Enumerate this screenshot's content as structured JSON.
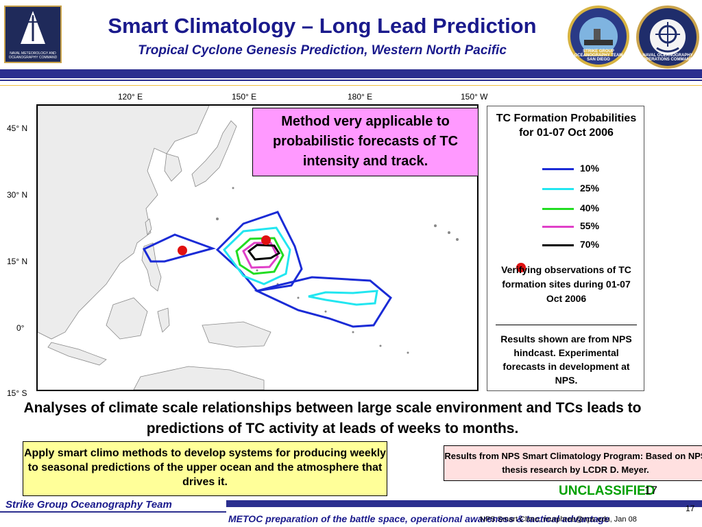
{
  "header": {
    "title": "Smart Climatology – Long Lead Prediction",
    "subtitle": "Tropical Cyclone Genesis Prediction, Western North Pacific",
    "logo_left_text": "NAVAL METEOROLOGY AND OCEANOGRAPHY COMMAND",
    "logo_right1_text": "STRIKE GROUP OCEANOGRAPHY TEAM SAN DIEGO",
    "logo_right2_text": "NAVAL OCEANOGRAPHY OPERATIONS COMMAND"
  },
  "map": {
    "lon_labels": [
      "120° E",
      "150° E",
      "180° E",
      "150° W"
    ],
    "lat_labels": [
      "45° N",
      "30° N",
      "15° N",
      "0°",
      "15° S"
    ],
    "callout": "Method very applicable to probabilistic forecasts of TC intensity and track."
  },
  "legend": {
    "title": "TC Formation Probabilities for 01-07 Oct 2006",
    "items": [
      {
        "label": "10%",
        "color": "#1a2bd6"
      },
      {
        "label": "25%",
        "color": "#22e6f0"
      },
      {
        "label": "40%",
        "color": "#22dd22"
      },
      {
        "label": "55%",
        "color": "#e040c8"
      },
      {
        "label": "70%",
        "color": "#000000"
      }
    ],
    "verifying": "Verifying observations of TC formation sites during 01-07 Oct 2006",
    "results": "Results shown are from NPS hindcast. Experimental forecasts in development at NPS."
  },
  "body": {
    "analysis": "Analyses of climate scale relationships between large scale environment and TCs leads to predictions of TC activity at leads of weeks to months.",
    "yellow_box": "Apply smart climo methods to develop systems for producing weekly to seasonal predictions of the upper ocean and the atmosphere that drives it.",
    "pink_box": "Results from NPS Smart Climatology Program: Based on NPS thesis research by LCDR D. Meyer.",
    "classification": "UNCLASSIFIED",
    "page_number": "17"
  },
  "footer": {
    "left": "Strike Group Oceanography Team",
    "right": "METOC preparation of the battle space, operational awareness & tactical advantage",
    "note": "NPS Smart Climo, murphree@nps.edu, Jan 08"
  },
  "colors": {
    "title_blue": "#1a1a8c",
    "bar_navy": "#2b2f8f",
    "callout_pink": "#ff99ff",
    "yellow": "#ffff99",
    "unclass_green": "#00a000",
    "obs_red": "#e01010"
  }
}
